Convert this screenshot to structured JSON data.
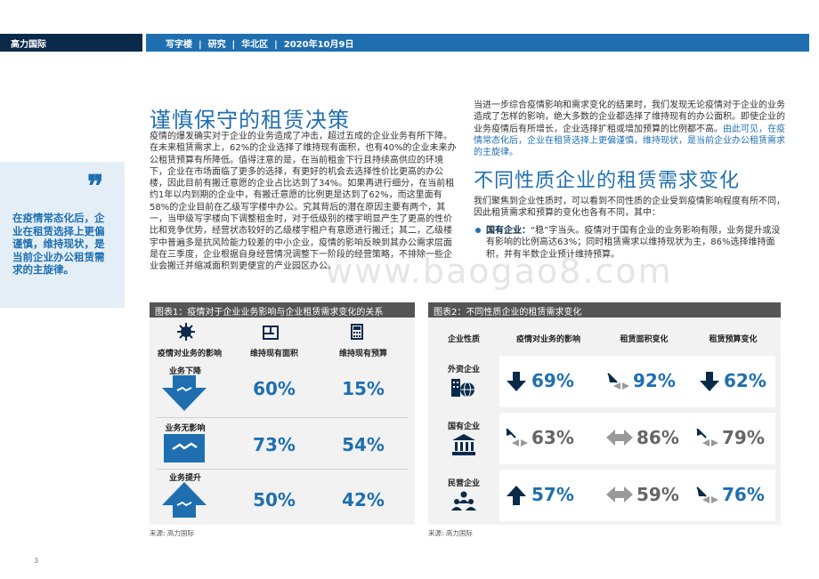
{
  "header": {
    "brand": "高力国际",
    "crumbs": "写字楼  |  研究  |  华北区  |  2020年10月9日"
  },
  "left": {
    "title": "谨慎保守的租赁决策",
    "para": "疫情的爆发确实对于企业的业务造成了冲击，超过五成的企业业务有所下降。在未来租赁需求上，62%的企业选择了维持现有面积，也有40%的企业未来办公租赁预算有所降低。值得注意的是，在当前租金下行且持续高供应的环境下，企业在市场面临了更多的选择，有更好的机会去选择性价比更高的办公楼，因此目前有搬迁意愿的企业占比达到了34%。如果再进行细分，在当前租约1年以内到期的企业中，有搬迁意愿的比例更是达到了62%，而这里面有58%的企业目前在乙级写字楼中办公。究其背后的潜在原因主要有两个，其一，当甲级写字楼向下调整租金时，对于低级别的楼宇明显产生了更高的性价比和竞争优势，经营状态较好的乙级楼宇租户有意愿进行搬迁；其二，乙级楼宇中普遍多是抗风险能力较差的中小企业，疫情的影响反映到其办公需求层面是在三季度，企业根据自身经营情况调整下一阶段的经营策略，不排除一些企业会搬迁并缩减面积到更便宜的产业园区办公。"
  },
  "quote": "在疫情常态化后，企业在租赁选择上更偏谨慎，维持现状，是当前企业办公租赁需求的主旋律。",
  "right": {
    "para1_plain": "当进一步综合疫情影响和需求变化的结果时，我们发现无论疫情对于企业的业务造成了怎样的影响，绝大多数的企业都选择了维持现有的办公面积。即使企业的业务疫情后有所增长，企业选择扩租或增加预算的比例都不高。",
    "para1_hl": "由此可见，在疫情常态化后，企业在租赁选择上更偏谨慎，维持现状，是当前企业办公租赁需求的主旋律。",
    "title": "不同性质企业的租赁需求变化",
    "para2": "我们聚焦到企业性质时，可以看到不同性质的企业受到疫情影响程度有所不同，因此租赁需求和预算的变化也各有不同，其中：",
    "bullet_label": "国有企业：",
    "bullet_text": "“稳”字当头。疫情对于国有企业的业务影响有限，业务提升或没有影响的比例高达63%；同时租赁需求以维持现状为主，86%选择维持面积，并有半数企业预计维持预算。"
  },
  "chart1": {
    "title": "图表1：疫情对于企业业务影响与企业租赁需求变化的关系",
    "col_heads": [
      "疫情对业务的影响",
      "维持现有面积",
      "维持现有预算"
    ],
    "rows": [
      {
        "label": "业务下降",
        "area": "60%",
        "budget": "15%"
      },
      {
        "label": "业务无影响",
        "area": "73%",
        "budget": "54%"
      },
      {
        "label": "业务提升",
        "area": "50%",
        "budget": "42%"
      }
    ],
    "source": "来源: 高力国际"
  },
  "chart2": {
    "title": "图表2：不同性质企业的租赁需求变化",
    "col_heads": [
      "企业性质",
      "疫情对业务的影响",
      "租赁面积变化",
      "租赁预算变化"
    ],
    "rows": [
      {
        "label": "外资企业",
        "impact": "69%",
        "area": "92%",
        "budget": "62%"
      },
      {
        "label": "国有企业",
        "impact": "63%",
        "area": "86%",
        "budget": "79%"
      },
      {
        "label": "民营企业",
        "impact": "57%",
        "area": "59%",
        "budget": "76%"
      }
    ],
    "source": "来源: 高力国际"
  },
  "page_number": "3",
  "watermark": "www.baogao8.com"
}
